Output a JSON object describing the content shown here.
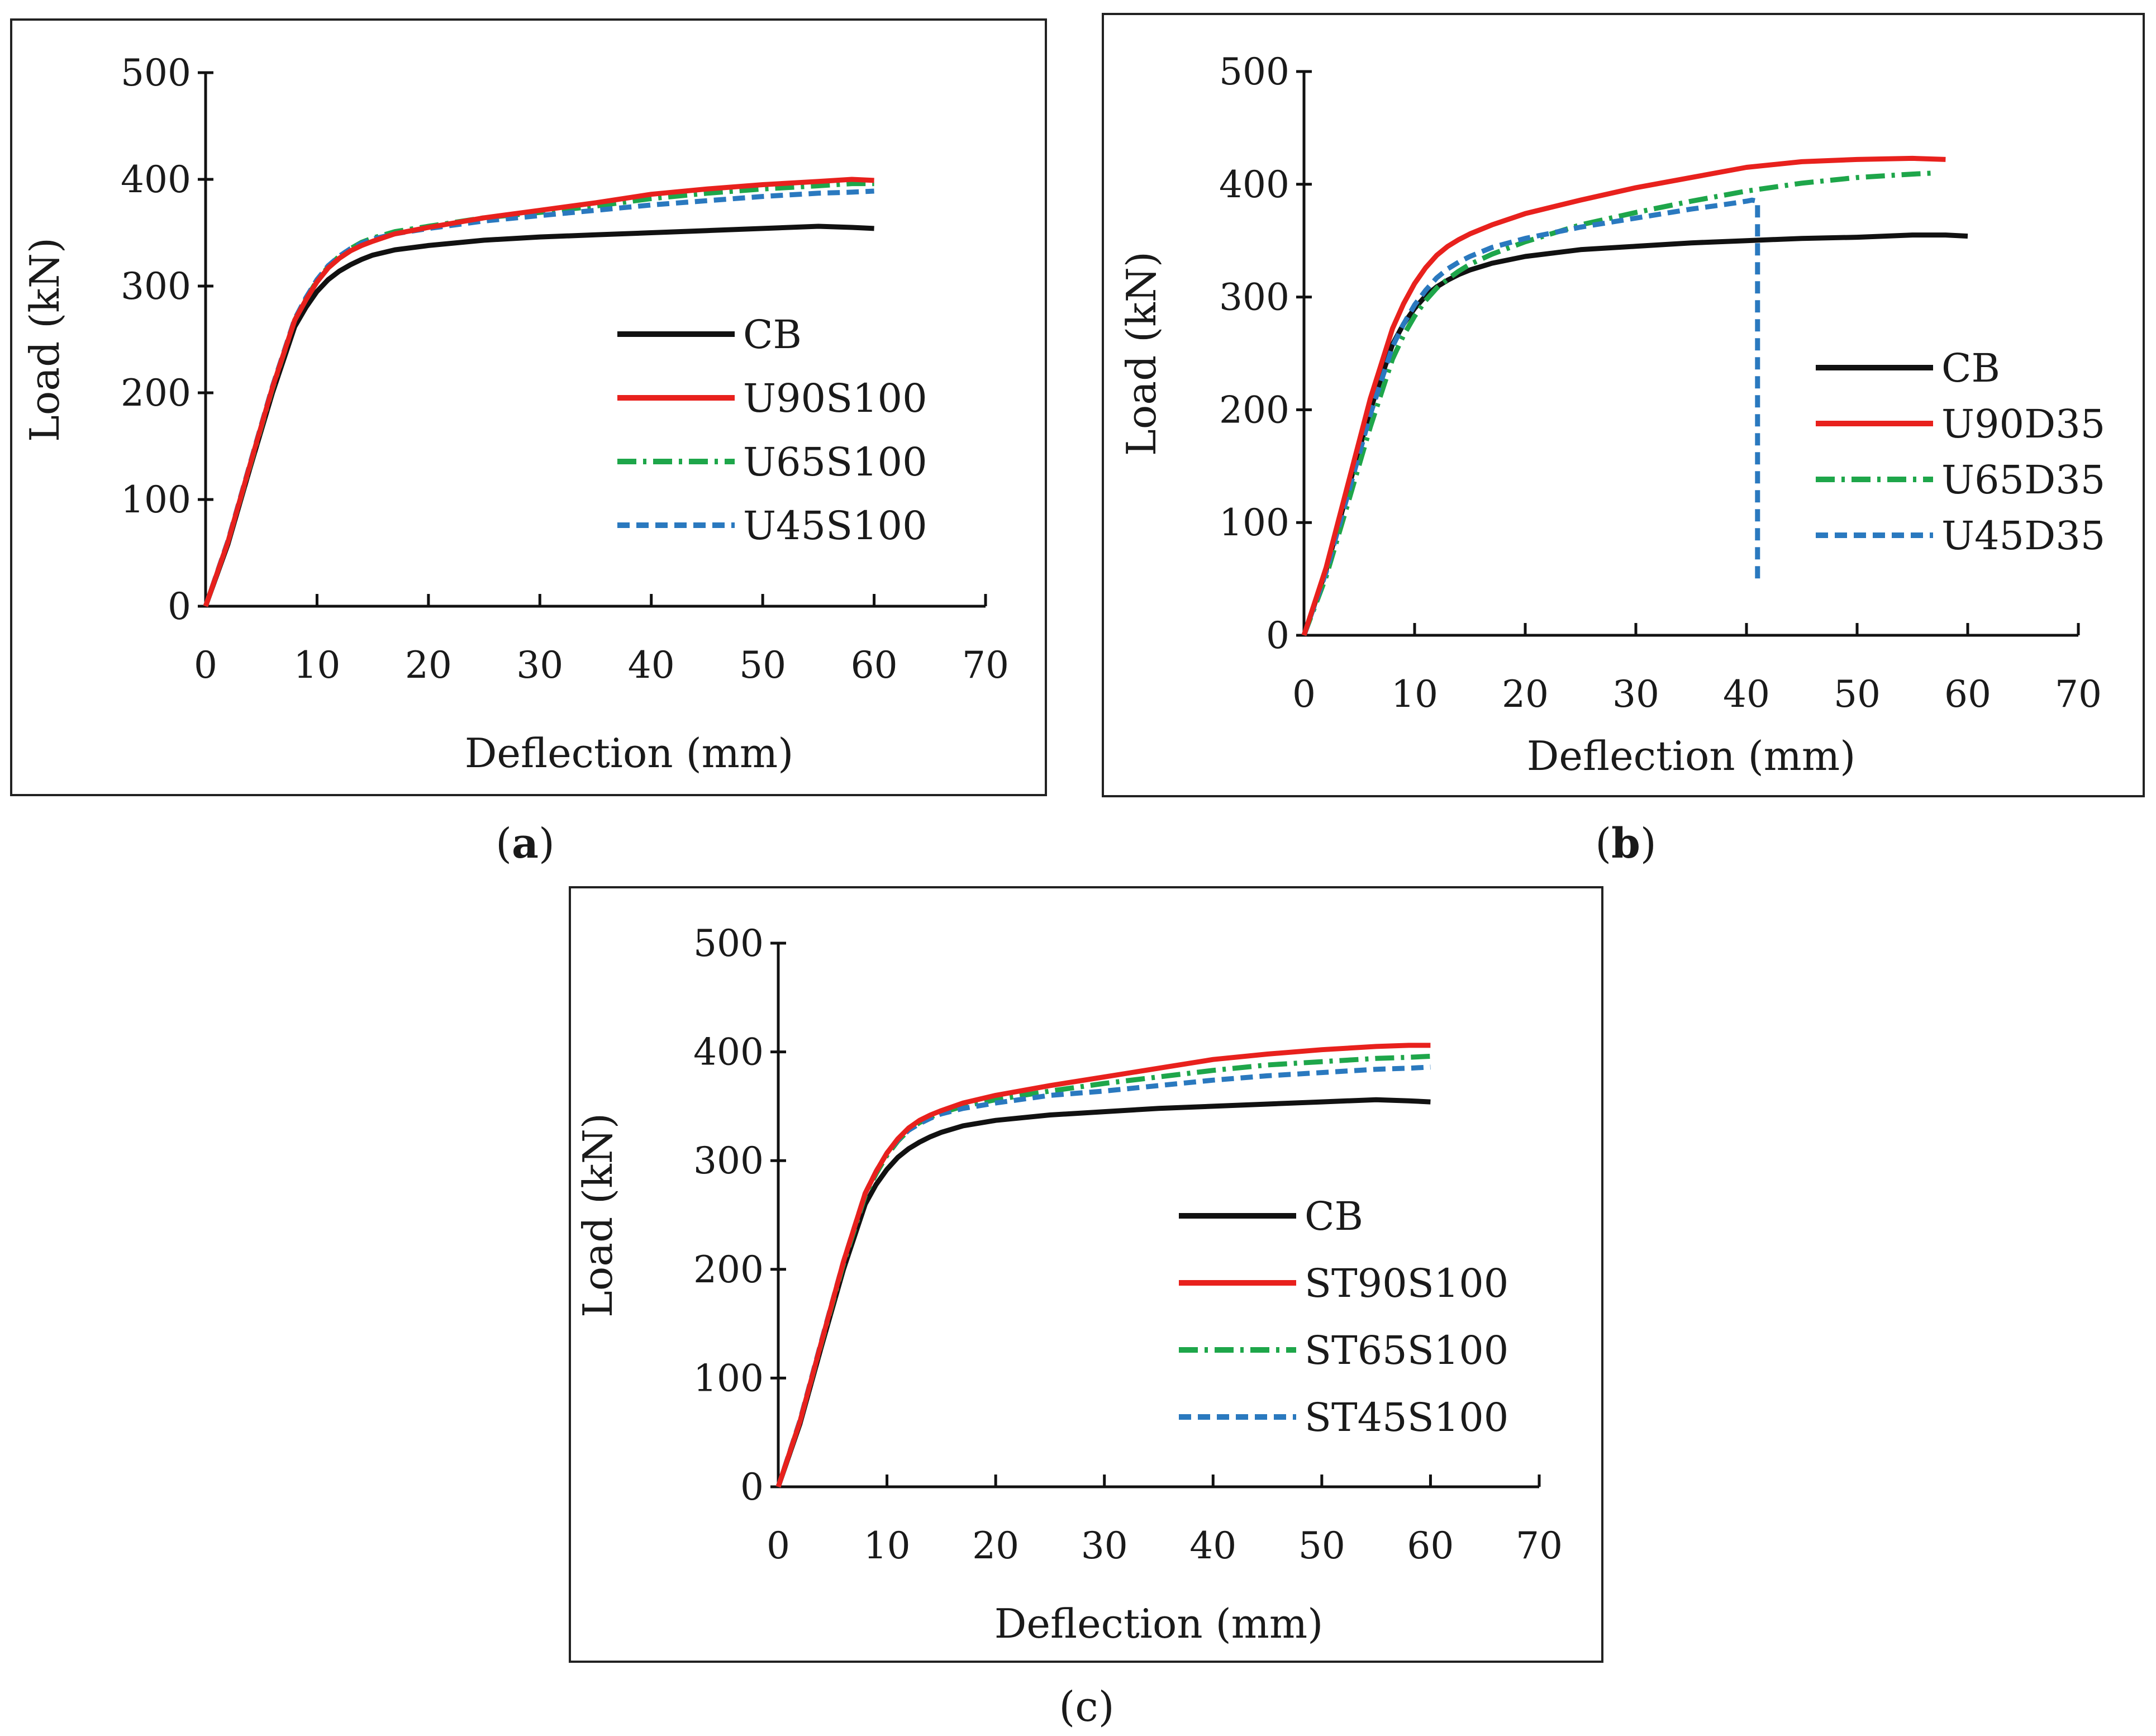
{
  "figure": {
    "captions": [
      {
        "open": "(",
        "letter": "a",
        "close": ")"
      },
      {
        "open": "(",
        "letter": "b",
        "close": ")"
      },
      {
        "open": "(",
        "letter": "c",
        "close": ")"
      }
    ]
  },
  "colors": {
    "CB": "#111111",
    "red": "#e8211d",
    "green": "#1ea64a",
    "blue": "#2a79bf",
    "frame": "#222222"
  },
  "chart_data": [
    {
      "panel": "a",
      "type": "line",
      "title": "",
      "xlabel": "Deflection (mm)",
      "ylabel": "Load (kN)",
      "xlim": [
        0,
        70
      ],
      "ylim": [
        0,
        500
      ],
      "xticks": [
        0,
        10,
        20,
        30,
        40,
        50,
        60,
        70
      ],
      "yticks": [
        0,
        100,
        200,
        300,
        400,
        500
      ],
      "legend_position": "right",
      "series": [
        {
          "name": "CB",
          "color": "#111111",
          "dash": "solid",
          "x": [
            0,
            2,
            4,
            6,
            8,
            9,
            10,
            11,
            12,
            13,
            14,
            15,
            17,
            20,
            25,
            30,
            35,
            40,
            45,
            50,
            55,
            58,
            60
          ],
          "y": [
            0,
            58,
            130,
            200,
            262,
            280,
            295,
            306,
            314,
            320,
            325,
            329,
            334,
            338,
            343,
            346,
            348,
            350,
            352,
            354,
            356,
            355,
            354
          ]
        },
        {
          "name": "U90S100",
          "color": "#e8211d",
          "dash": "solid",
          "x": [
            0,
            2,
            4,
            6,
            8,
            9,
            10,
            11,
            12,
            13,
            14,
            15,
            17,
            20,
            25,
            30,
            35,
            40,
            45,
            50,
            55,
            58,
            60
          ],
          "y": [
            0,
            60,
            133,
            205,
            268,
            287,
            304,
            317,
            326,
            333,
            338,
            342,
            349,
            355,
            364,
            371,
            378,
            386,
            391,
            395,
            398,
            400,
            399
          ]
        },
        {
          "name": "U65S100",
          "color": "#1ea64a",
          "dash": "dashdot",
          "x": [
            0,
            2,
            4,
            6,
            8,
            9,
            10,
            11,
            12,
            13,
            14,
            15,
            17,
            20,
            25,
            30,
            35,
            40,
            45,
            50,
            55,
            58,
            60
          ],
          "y": [
            0,
            60,
            132,
            204,
            268,
            288,
            305,
            318,
            328,
            335,
            341,
            345,
            351,
            356,
            364,
            369,
            375,
            382,
            387,
            391,
            394,
            396,
            396
          ]
        },
        {
          "name": "U45S100",
          "color": "#2a79bf",
          "dash": "dash",
          "x": [
            0,
            2,
            4,
            6,
            8,
            9,
            10,
            11,
            12,
            13,
            14,
            15,
            17,
            20,
            25,
            30,
            35,
            40,
            45,
            50,
            55,
            58,
            60
          ],
          "y": [
            0,
            61,
            134,
            206,
            269,
            289,
            306,
            319,
            328,
            335,
            340,
            344,
            349,
            354,
            361,
            366,
            371,
            376,
            380,
            384,
            387,
            388,
            389
          ]
        }
      ]
    },
    {
      "panel": "b",
      "type": "line",
      "title": "",
      "xlabel": "Deflection (mm)",
      "ylabel": "Load (kN)",
      "xlim": [
        0,
        70
      ],
      "ylim": [
        0,
        500
      ],
      "xticks": [
        0,
        10,
        20,
        30,
        40,
        50,
        60,
        70
      ],
      "yticks": [
        0,
        100,
        200,
        300,
        400,
        500
      ],
      "legend_position": "right",
      "series": [
        {
          "name": "CB",
          "color": "#111111",
          "dash": "solid",
          "x": [
            0,
            2,
            4,
            6,
            8,
            9,
            10,
            11,
            12,
            13,
            14,
            15,
            17,
            20,
            25,
            30,
            35,
            40,
            45,
            50,
            55,
            58,
            60
          ],
          "y": [
            0,
            58,
            130,
            200,
            258,
            276,
            290,
            301,
            309,
            315,
            320,
            324,
            330,
            336,
            342,
            345,
            348,
            350,
            352,
            353,
            355,
            355,
            354
          ]
        },
        {
          "name": "U90D35",
          "color": "#e8211d",
          "dash": "solid",
          "x": [
            0,
            2,
            4,
            6,
            8,
            9,
            10,
            11,
            12,
            13,
            14,
            15,
            17,
            20,
            25,
            30,
            35,
            40,
            45,
            50,
            55,
            58
          ],
          "y": [
            0,
            60,
            135,
            210,
            272,
            294,
            312,
            326,
            337,
            345,
            351,
            356,
            364,
            374,
            386,
            397,
            406,
            415,
            420,
            422,
            423,
            422
          ]
        },
        {
          "name": "U65D35",
          "color": "#1ea64a",
          "dash": "dashdot",
          "x": [
            0,
            2,
            4,
            6,
            8,
            9,
            10,
            11,
            12,
            13,
            14,
            15,
            17,
            20,
            25,
            30,
            35,
            40,
            45,
            50,
            55,
            57
          ],
          "y": [
            0,
            52,
            118,
            185,
            245,
            266,
            283,
            297,
            308,
            316,
            323,
            329,
            338,
            349,
            364,
            375,
            385,
            394,
            401,
            406,
            409,
            410
          ]
        },
        {
          "name": "U45D35",
          "color": "#2a79bf",
          "dash": "dash",
          "x": [
            0,
            2,
            4,
            6,
            8,
            9,
            10,
            11,
            12,
            13,
            14,
            15,
            17,
            20,
            25,
            30,
            35,
            38,
            40,
            40.5,
            41,
            41
          ],
          "y": [
            0,
            56,
            126,
            196,
            256,
            276,
            293,
            306,
            317,
            325,
            331,
            336,
            344,
            352,
            362,
            370,
            378,
            382,
            385,
            386,
            385,
            50
          ]
        }
      ]
    },
    {
      "panel": "c",
      "type": "line",
      "title": "",
      "xlabel": "Deflection (mm)",
      "ylabel": "Load (kN)",
      "xlim": [
        0,
        70
      ],
      "ylim": [
        0,
        500
      ],
      "xticks": [
        0,
        10,
        20,
        30,
        40,
        50,
        60,
        70
      ],
      "yticks": [
        0,
        100,
        200,
        300,
        400,
        500
      ],
      "legend_position": "right",
      "series": [
        {
          "name": "CB",
          "color": "#111111",
          "dash": "solid",
          "x": [
            0,
            2,
            4,
            6,
            8,
            9,
            10,
            11,
            12,
            13,
            14,
            15,
            17,
            20,
            25,
            30,
            35,
            40,
            45,
            50,
            55,
            58,
            60
          ],
          "y": [
            0,
            58,
            130,
            200,
            260,
            278,
            292,
            303,
            311,
            317,
            322,
            326,
            332,
            337,
            342,
            345,
            348,
            350,
            352,
            354,
            356,
            355,
            354
          ]
        },
        {
          "name": "ST90S100",
          "color": "#e8211d",
          "dash": "solid",
          "x": [
            0,
            2,
            4,
            6,
            8,
            9,
            10,
            11,
            12,
            13,
            14,
            15,
            17,
            20,
            25,
            30,
            35,
            40,
            45,
            50,
            55,
            58,
            60
          ],
          "y": [
            0,
            60,
            134,
            207,
            270,
            290,
            307,
            320,
            330,
            337,
            342,
            346,
            353,
            360,
            369,
            377,
            385,
            393,
            398,
            402,
            405,
            406,
            406
          ]
        },
        {
          "name": "ST65S100",
          "color": "#1ea64a",
          "dash": "dashdot",
          "x": [
            0,
            2,
            4,
            6,
            8,
            9,
            10,
            11,
            12,
            13,
            14,
            15,
            17,
            20,
            25,
            30,
            35,
            40,
            45,
            50,
            55,
            58,
            60
          ],
          "y": [
            0,
            60,
            133,
            205,
            268,
            288,
            305,
            318,
            328,
            335,
            340,
            344,
            350,
            356,
            364,
            371,
            377,
            383,
            388,
            391,
            394,
            395,
            396
          ]
        },
        {
          "name": "ST45S100",
          "color": "#2a79bf",
          "dash": "dash",
          "x": [
            0,
            2,
            4,
            6,
            8,
            9,
            10,
            11,
            12,
            13,
            14,
            15,
            17,
            20,
            25,
            30,
            35,
            40,
            45,
            50,
            55,
            58,
            60
          ],
          "y": [
            0,
            61,
            135,
            207,
            270,
            290,
            307,
            319,
            328,
            334,
            339,
            343,
            348,
            353,
            360,
            364,
            369,
            374,
            378,
            381,
            384,
            385,
            386
          ]
        }
      ]
    }
  ]
}
